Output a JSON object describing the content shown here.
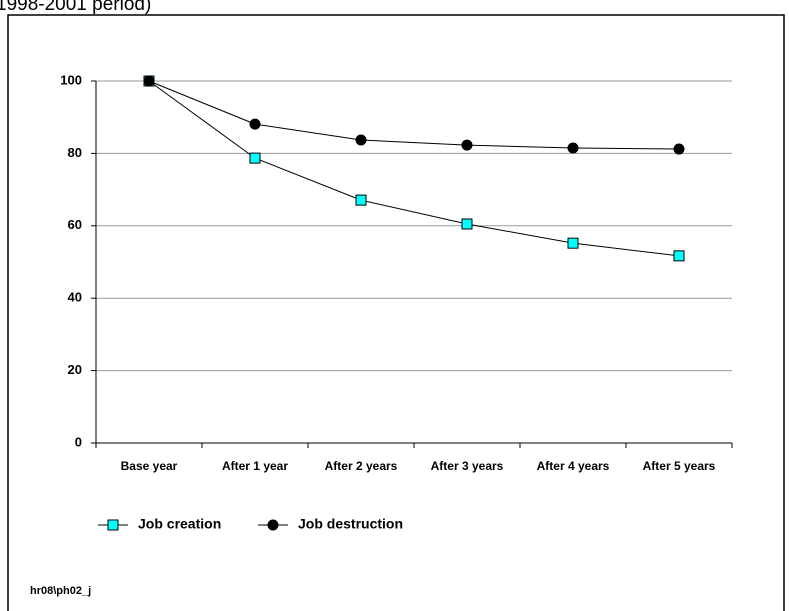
{
  "chart_data": {
    "type": "line",
    "title": "1998-2001 period)",
    "categories": [
      "Base year",
      "After 1 year",
      "After 2 years",
      "After 3 years",
      "After 4 years",
      "After 5 years"
    ],
    "series": [
      {
        "name": "Job creation",
        "color": "#00ffff",
        "marker": "square",
        "values": [
          100,
          78.7,
          67.1,
          60.5,
          55.2,
          51.7
        ]
      },
      {
        "name": "Job destruction",
        "color": "#000000",
        "marker": "circle",
        "values": [
          100,
          88.1,
          83.7,
          82.3,
          81.5,
          81.2
        ]
      }
    ],
    "ylim": [
      0,
      100
    ],
    "yticks": [
      0,
      20,
      40,
      60,
      80,
      100
    ],
    "grid": true,
    "note": "hr08\\ph02_j"
  }
}
